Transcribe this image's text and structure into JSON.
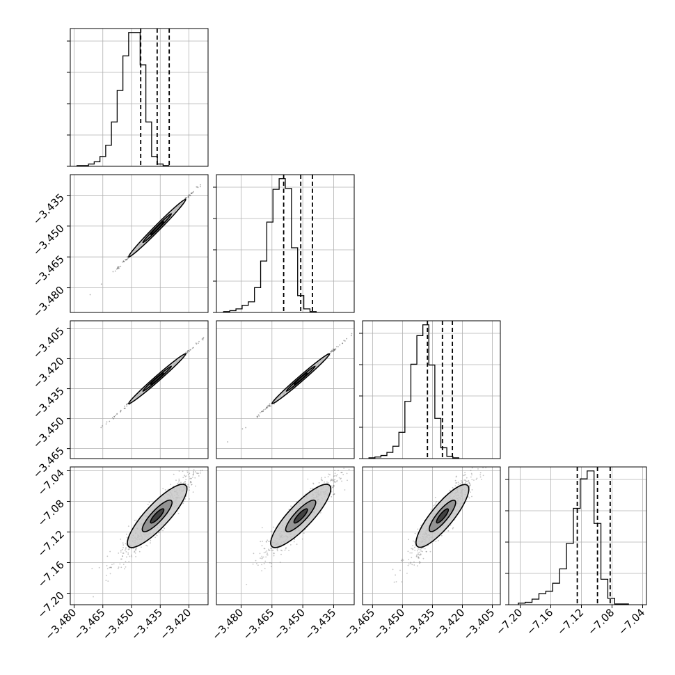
{
  "chart_data": {
    "type": "corner",
    "title": "",
    "parameters": [
      {
        "index": 0,
        "label": "",
        "range": [
          -3.482,
          -3.41
        ],
        "ticks": [
          -3.48,
          -3.465,
          -3.45,
          -3.435,
          -3.42
        ],
        "tick_labels": [
          "−3.480",
          "−3.465",
          "−3.450",
          "−3.435",
          "−3.420"
        ],
        "quantiles": [
          -3.4452,
          -3.4366,
          -3.4303
        ]
      },
      {
        "index": 1,
        "label": "",
        "range": [
          -3.492,
          -3.425
        ],
        "ticks": [
          -3.48,
          -3.465,
          -3.45,
          -3.435
        ],
        "tick_labels": [
          "−3.480",
          "−3.465",
          "−3.450",
          "−3.435"
        ],
        "quantiles": [
          -3.4593,
          -3.451,
          -3.4453
        ]
      },
      {
        "index": 2,
        "label": "",
        "range": [
          -3.47,
          -3.401
        ],
        "ticks": [
          -3.465,
          -3.45,
          -3.435,
          -3.42,
          -3.405
        ],
        "tick_labels": [
          "−3.465",
          "−3.450",
          "−3.435",
          "−3.420",
          "−3.405"
        ],
        "quantiles": [
          -3.4375,
          -3.43,
          -3.425
        ]
      },
      {
        "index": 3,
        "label": "",
        "range": [
          -7.215,
          -7.035
        ],
        "ticks": [
          -7.2,
          -7.16,
          -7.12,
          -7.08,
          -7.04
        ],
        "tick_labels": [
          "−7.20",
          "−7.16",
          "−7.12",
          "−7.08",
          "−7.04"
        ],
        "quantiles": [
          -7.1254,
          -7.099,
          -7.0824
        ]
      }
    ],
    "histograms": [
      {
        "param": 0,
        "bin_start": -3.4785,
        "bin_width": 0.003,
        "counts": [
          1,
          1,
          3,
          6,
          13,
          28,
          59,
          101,
          147,
          178,
          178,
          135,
          59,
          13,
          3,
          1
        ]
      },
      {
        "param": 1,
        "bin_start": -3.4885,
        "bin_width": 0.003,
        "counts": [
          1,
          2,
          4,
          8,
          12,
          28,
          58,
          102,
          139,
          151,
          140,
          73,
          19,
          4,
          1
        ]
      },
      {
        "param": 2,
        "bin_start": -3.4668,
        "bin_width": 0.003,
        "counts": [
          1,
          2,
          4,
          8,
          16,
          34,
          74,
          122,
          159,
          173,
          121,
          52,
          14,
          3,
          1
        ]
      },
      {
        "param": 3,
        "bin_start": -7.2025,
        "bin_width": 0.009,
        "counts": [
          2,
          3,
          7,
          14,
          17,
          27,
          45,
          77,
          121,
          158,
          168,
          102,
          32,
          8,
          1,
          1
        ]
      }
    ],
    "pairs": [
      {
        "x_param": 0,
        "y_param": 1,
        "correlation": 0.999
      },
      {
        "x_param": 0,
        "y_param": 2,
        "correlation": 0.999
      },
      {
        "x_param": 1,
        "y_param": 2,
        "correlation": 0.999
      },
      {
        "x_param": 0,
        "y_param": 3,
        "correlation": 0.93
      },
      {
        "x_param": 1,
        "y_param": 3,
        "correlation": 0.93
      },
      {
        "x_param": 2,
        "y_param": 3,
        "correlation": 0.93
      }
    ],
    "grid": true,
    "colors": {
      "line": "#000000",
      "grid": "#b0b0b0",
      "points": "#555555",
      "fill_light": "#c8c8c8",
      "fill_mid": "#8a8a8a",
      "fill_dark": "#333333"
    }
  }
}
